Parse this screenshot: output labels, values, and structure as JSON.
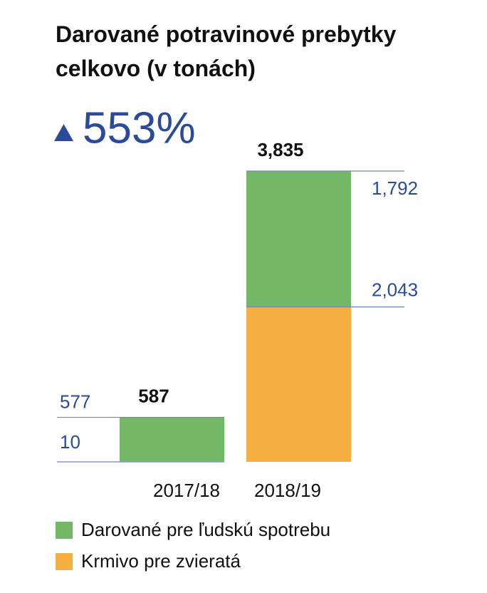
{
  "chart_data": {
    "type": "stacked-bar",
    "title": "Darované potravinové prebytky celkovo (v tonách)",
    "annotation": "553%",
    "categories": [
      "2017/18",
      "2018/19"
    ],
    "series": [
      {
        "name": "Krmivo pre zvieratá",
        "color": "#f6b042",
        "values": [
          10,
          2043
        ],
        "value_labels": [
          "10",
          "2,043"
        ]
      },
      {
        "name": "Darované pre ľudskú spotrebu",
        "color": "#72b866",
        "values": [
          577,
          1792
        ],
        "value_labels": [
          "577",
          "1,792"
        ]
      }
    ],
    "totals": {
      "values": [
        587,
        3835
      ],
      "value_labels": [
        "587",
        "3,835"
      ]
    }
  }
}
